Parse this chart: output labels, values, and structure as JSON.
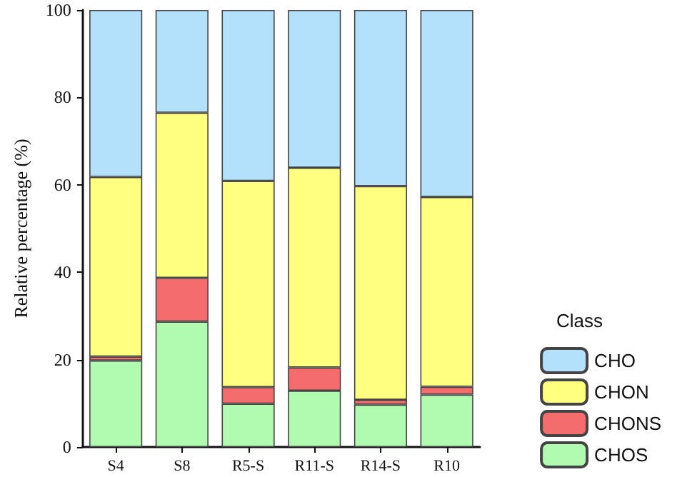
{
  "chart_data": {
    "type": "bar",
    "stacked": true,
    "ylabel": "Relative percentage (%)",
    "legend_title": "Class",
    "legend": "right",
    "categories": [
      "S4",
      "S8",
      "R5-S",
      "R11-S",
      "R14-S",
      "R10"
    ],
    "series": [
      {
        "name": "CHOS",
        "color": "#b0fbb0",
        "values": [
          19.8,
          28.7,
          9.9,
          12.9,
          9.7,
          12.0
        ]
      },
      {
        "name": "CHONS",
        "color": "#f56c6c",
        "values": [
          0.9,
          10.0,
          3.8,
          5.3,
          1.1,
          1.8
        ]
      },
      {
        "name": "CHON",
        "color": "#ffff80",
        "values": [
          41.1,
          37.8,
          47.2,
          45.7,
          48.9,
          43.4
        ]
      },
      {
        "name": "CHO",
        "color": "#b3e0fb",
        "values": [
          38.2,
          23.5,
          39.1,
          36.1,
          40.3,
          42.8
        ]
      }
    ],
    "ylim": [
      0,
      100
    ],
    "yticks": [
      0,
      20,
      40,
      60,
      80,
      100
    ],
    "grid": false
  }
}
